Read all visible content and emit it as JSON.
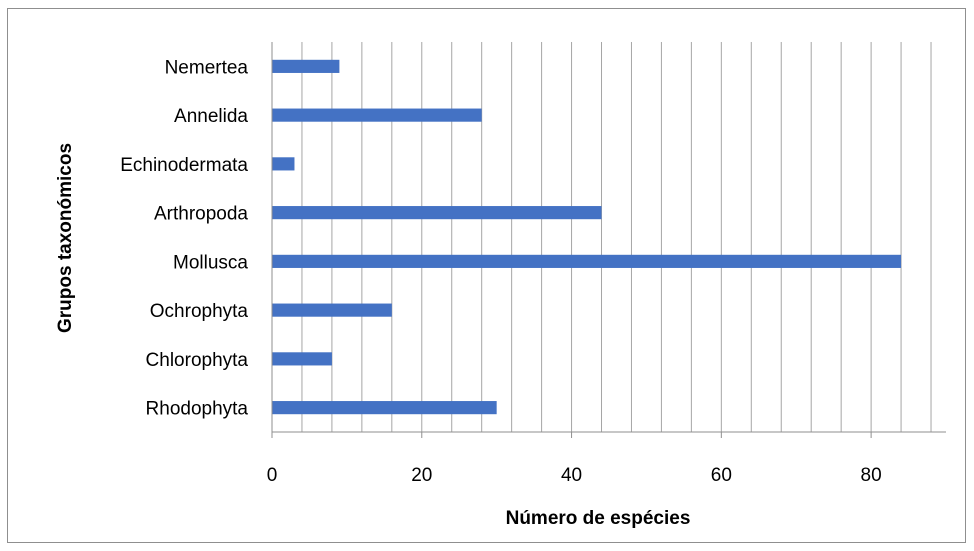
{
  "chart_data": {
    "type": "bar",
    "orientation": "horizontal",
    "categories": [
      "Rhodophyta",
      "Chlorophyta",
      "Ochrophyta",
      "Mollusca",
      "Arthropoda",
      "Echinodermata",
      "Annelida",
      "Nemertea"
    ],
    "values": [
      30,
      8,
      16,
      84,
      44,
      3,
      28,
      9
    ],
    "title": "",
    "xlabel": "Número de espécies",
    "ylabel": "Grupos taxonómicos",
    "xlim": [
      0,
      90
    ],
    "x_ticks": [
      0,
      20,
      40,
      60,
      80
    ],
    "grid": "vertical",
    "legend": "none",
    "bar_color": "#4472C4",
    "grid_color": "#a6a6a6",
    "axis_color": "#8f8f8f"
  }
}
